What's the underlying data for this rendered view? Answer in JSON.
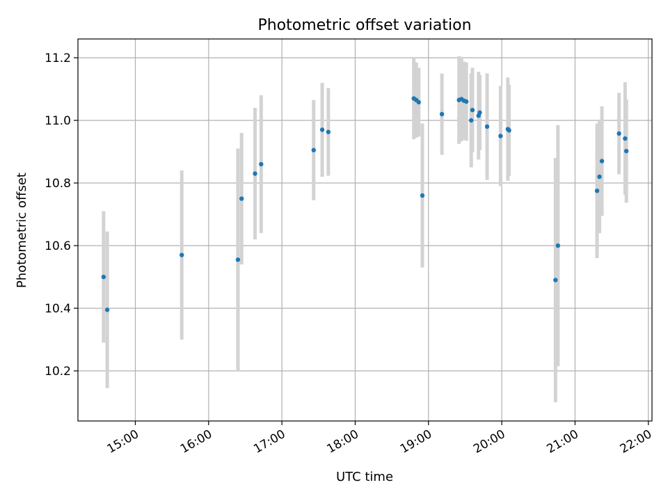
{
  "chart_data": {
    "type": "scatter",
    "title": "Photometric offset variation",
    "xlabel": "UTC time",
    "ylabel": "Photometric offset",
    "x_ticks": [
      "15:00",
      "16:00",
      "17:00",
      "18:00",
      "19:00",
      "20:00",
      "21:00",
      "22:00"
    ],
    "y_ticks": [
      "10.2",
      "10.4",
      "10.6",
      "10.8",
      "11.0",
      "11.2"
    ],
    "xlim": [
      "14:13",
      "22:03"
    ],
    "ylim": [
      10.04,
      11.26
    ],
    "grid": true,
    "colors": {
      "points": "#1f77b4",
      "errorbars": "#d3d3d3",
      "grid": "#b0b0b0"
    },
    "points": [
      {
        "x": "14:34",
        "y": 10.5,
        "err": 0.21
      },
      {
        "x": "14:37",
        "y": 10.395,
        "err": 0.25
      },
      {
        "x": "15:38",
        "y": 10.57,
        "err": 0.27
      },
      {
        "x": "16:24",
        "y": 10.555,
        "err": 0.355
      },
      {
        "x": "16:27",
        "y": 10.75,
        "err": 0.21
      },
      {
        "x": "16:38",
        "y": 10.83,
        "err": 0.21
      },
      {
        "x": "16:43",
        "y": 10.86,
        "err": 0.22
      },
      {
        "x": "17:26",
        "y": 10.905,
        "err": 0.16
      },
      {
        "x": "17:33",
        "y": 10.97,
        "err": 0.15
      },
      {
        "x": "17:38",
        "y": 10.963,
        "err": 0.14
      },
      {
        "x": "18:48",
        "y": 11.07,
        "err": 0.13
      },
      {
        "x": "18:50",
        "y": 11.065,
        "err": 0.12
      },
      {
        "x": "18:52",
        "y": 11.058,
        "err": 0.11
      },
      {
        "x": "18:55",
        "y": 10.76,
        "err": 0.23
      },
      {
        "x": "19:11",
        "y": 11.02,
        "err": 0.13
      },
      {
        "x": "19:25",
        "y": 11.065,
        "err": 0.14
      },
      {
        "x": "19:27",
        "y": 11.068,
        "err": 0.135
      },
      {
        "x": "19:29",
        "y": 11.063,
        "err": 0.125
      },
      {
        "x": "19:31",
        "y": 11.06,
        "err": 0.125
      },
      {
        "x": "19:35",
        "y": 11.0,
        "err": 0.15
      },
      {
        "x": "19:36",
        "y": 11.033,
        "err": 0.135
      },
      {
        "x": "19:41",
        "y": 11.015,
        "err": 0.14
      },
      {
        "x": "19:42",
        "y": 11.025,
        "err": 0.12
      },
      {
        "x": "19:48",
        "y": 10.98,
        "err": 0.17
      },
      {
        "x": "19:59",
        "y": 10.95,
        "err": 0.16
      },
      {
        "x": "20:05",
        "y": 10.972,
        "err": 0.165
      },
      {
        "x": "20:06",
        "y": 10.968,
        "err": 0.145
      },
      {
        "x": "20:44",
        "y": 10.49,
        "err": 0.39
      },
      {
        "x": "20:46",
        "y": 10.6,
        "err": 0.385
      },
      {
        "x": "21:18",
        "y": 10.775,
        "err": 0.215
      },
      {
        "x": "21:20",
        "y": 10.82,
        "err": 0.18
      },
      {
        "x": "21:22",
        "y": 10.87,
        "err": 0.175
      },
      {
        "x": "21:36",
        "y": 10.958,
        "err": 0.13
      },
      {
        "x": "21:41",
        "y": 10.942,
        "err": 0.18
      },
      {
        "x": "21:42",
        "y": 10.902,
        "err": 0.165
      }
    ]
  }
}
